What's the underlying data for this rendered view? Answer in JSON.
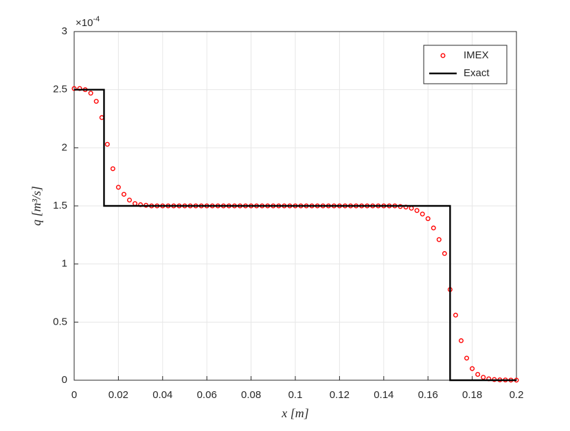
{
  "chart_data": {
    "type": "line",
    "xlabel": "x [m]",
    "ylabel": "q [m³/s]",
    "y_multiplier": {
      "base": "×10",
      "exponent": "-4"
    },
    "xlim": [
      0,
      0.2
    ],
    "ylim": [
      0,
      3
    ],
    "xticks": [
      0,
      0.02,
      0.04,
      0.06,
      0.08,
      0.1,
      0.12,
      0.14,
      0.16,
      0.18,
      0.2
    ],
    "yticks": [
      0,
      0.5,
      1,
      1.5,
      2,
      2.5,
      3
    ],
    "grid": true,
    "legend": "northeast",
    "series": [
      {
        "name": "IMEX",
        "color": "#ff0000",
        "style": "markers",
        "x": [
          0,
          0.0025,
          0.005,
          0.0075,
          0.01,
          0.0125,
          0.015,
          0.0175,
          0.02,
          0.0225,
          0.025,
          0.0275,
          0.03,
          0.0325,
          0.035,
          0.0375,
          0.04,
          0.0425,
          0.045,
          0.0475,
          0.05,
          0.0525,
          0.055,
          0.0575,
          0.06,
          0.0625,
          0.065,
          0.0675,
          0.07,
          0.0725,
          0.075,
          0.0775,
          0.08,
          0.0825,
          0.085,
          0.0875,
          0.09,
          0.0925,
          0.095,
          0.0975,
          0.1,
          0.1025,
          0.105,
          0.1075,
          0.11,
          0.1125,
          0.115,
          0.1175,
          0.12,
          0.1225,
          0.125,
          0.1275,
          0.13,
          0.1325,
          0.135,
          0.1375,
          0.14,
          0.1425,
          0.145,
          0.1475,
          0.15,
          0.1525,
          0.155,
          0.1575,
          0.16,
          0.1625,
          0.165,
          0.1675,
          0.17,
          0.1725,
          0.175,
          0.1775,
          0.18,
          0.1825,
          0.185,
          0.1875,
          0.19,
          0.1925,
          0.195,
          0.1975,
          0.2
        ],
        "values": [
          2.51,
          2.51,
          2.5,
          2.47,
          2.4,
          2.26,
          2.03,
          1.82,
          1.66,
          1.6,
          1.55,
          1.52,
          1.51,
          1.505,
          1.5,
          1.5,
          1.5,
          1.5,
          1.5,
          1.5,
          1.5,
          1.5,
          1.5,
          1.5,
          1.5,
          1.5,
          1.5,
          1.5,
          1.5,
          1.5,
          1.5,
          1.5,
          1.5,
          1.5,
          1.5,
          1.5,
          1.5,
          1.5,
          1.5,
          1.5,
          1.5,
          1.5,
          1.5,
          1.5,
          1.5,
          1.5,
          1.5,
          1.5,
          1.5,
          1.5,
          1.5,
          1.5,
          1.5,
          1.5,
          1.5,
          1.5,
          1.5,
          1.5,
          1.5,
          1.495,
          1.49,
          1.48,
          1.46,
          1.43,
          1.39,
          1.31,
          1.21,
          1.09,
          0.78,
          0.56,
          0.34,
          0.19,
          0.1,
          0.05,
          0.025,
          0.012,
          0.006,
          0.003,
          0.002,
          0.001,
          0.0005
        ]
      },
      {
        "name": "Exact",
        "color": "#000000",
        "style": "line",
        "x": [
          0,
          0.0135,
          0.0135,
          0.17,
          0.17,
          0.2
        ],
        "values": [
          2.5,
          2.5,
          1.5,
          1.5,
          0,
          0
        ]
      }
    ]
  }
}
